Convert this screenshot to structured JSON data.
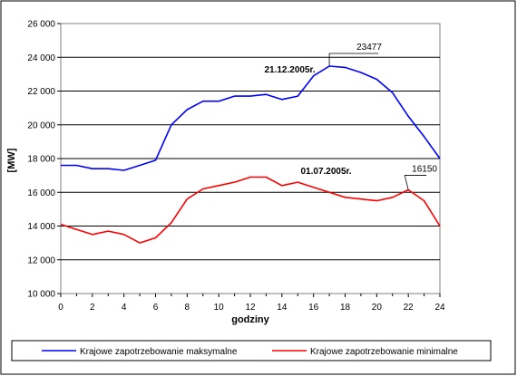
{
  "chart_data": {
    "type": "line",
    "title": "",
    "xlabel": "godziny",
    "ylabel": "[MW]",
    "xlim": [
      0,
      24
    ],
    "ylim": [
      10000,
      26000
    ],
    "x_ticks": [
      "0",
      "2",
      "4",
      "6",
      "8",
      "10",
      "12",
      "14",
      "16",
      "18",
      "20",
      "22",
      "24"
    ],
    "y_ticks": [
      "10 000",
      "12 000",
      "14 000",
      "16 000",
      "18 000",
      "20 000",
      "22 000",
      "24 000",
      "26 000"
    ],
    "grid": "horizontal",
    "legend_position": "bottom",
    "x": [
      0,
      1,
      2,
      3,
      4,
      5,
      6,
      7,
      8,
      9,
      10,
      11,
      12,
      13,
      14,
      15,
      16,
      17,
      18,
      19,
      20,
      21,
      22,
      23,
      24
    ],
    "series": [
      {
        "name": "Krajowe zapotrzebowanie maksymalne",
        "color": "#0000ff",
        "values": [
          17600,
          17600,
          17400,
          17400,
          17300,
          17600,
          17900,
          20000,
          20900,
          21400,
          21400,
          21700,
          21700,
          21800,
          21500,
          21700,
          22900,
          23477,
          23400,
          23100,
          22700,
          21900,
          20500,
          19300,
          18000
        ]
      },
      {
        "name": "Krajowe zapotrzebowanie minimalne",
        "color": "#ff0000",
        "values": [
          14100,
          13800,
          13500,
          13700,
          13500,
          13000,
          13300,
          14200,
          15600,
          16200,
          16400,
          16600,
          16900,
          16900,
          16400,
          16600,
          16300,
          16000,
          15700,
          15600,
          15500,
          15700,
          16150,
          15500,
          14000
        ]
      }
    ],
    "annotations": [
      {
        "text": "21.12.2005r.",
        "x": 14.5,
        "y": 23100
      },
      {
        "text": "01.07.2005r.",
        "x": 16.8,
        "y": 17100
      }
    ],
    "callouts": [
      {
        "text": "23477",
        "point_x": 17,
        "point_y": 23477
      },
      {
        "text": "16150",
        "point_x": 22,
        "point_y": 16150
      }
    ]
  }
}
